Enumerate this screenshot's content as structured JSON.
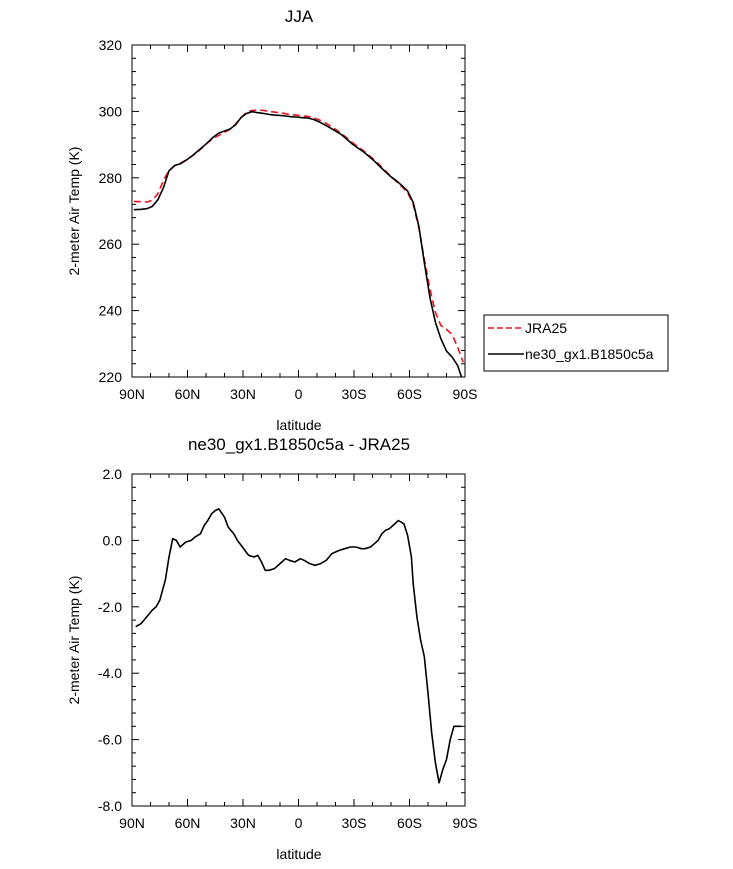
{
  "chart_data": [
    {
      "type": "line",
      "title": "JJA",
      "xlabel": "latitude",
      "ylabel": "2-meter Air Temp (K)",
      "ylim": [
        220,
        320
      ],
      "yticks": [
        220,
        240,
        260,
        280,
        300,
        320
      ],
      "yticklabels": [
        "220",
        "240",
        "260",
        "280",
        "300",
        "320"
      ],
      "xlim": [
        90,
        -90
      ],
      "xticks": [
        90,
        60,
        30,
        0,
        -30,
        -60,
        -90
      ],
      "xticklabels": [
        "90N",
        "60N",
        "30N",
        "0",
        "30S",
        "60S",
        "90S"
      ],
      "legend": "right",
      "series": [
        {
          "name": "JRA25",
          "color": "#e8141c",
          "dash": "dashed",
          "x": [
            89,
            85,
            82,
            79,
            76,
            73,
            70,
            67,
            64,
            61,
            58,
            55,
            52,
            49,
            46,
            43,
            40,
            37,
            34,
            31,
            28,
            25,
            22,
            19,
            16,
            13,
            10,
            7,
            4,
            1,
            -2,
            -5,
            -8,
            -11,
            -14,
            -17,
            -20,
            -23,
            -26,
            -29,
            -32,
            -35,
            -38,
            -41,
            -44,
            -47,
            -50,
            -53,
            -56,
            -59,
            -62,
            -65,
            -68,
            -71,
            -74,
            -77,
            -80,
            -83,
            -86,
            -89
          ],
          "y": [
            272.9,
            272.8,
            272.7,
            273.2,
            275.2,
            279.2,
            282.2,
            283.6,
            284.3,
            285.3,
            286.4,
            287.6,
            289.1,
            290.6,
            291.9,
            292.8,
            293.7,
            294.6,
            296.2,
            298.2,
            299.8,
            300.3,
            300.4,
            300.3,
            300.0,
            299.8,
            299.6,
            299.3,
            299.0,
            298.9,
            298.6,
            298.5,
            298.1,
            297.5,
            296.7,
            295.7,
            294.6,
            293.4,
            292.1,
            290.7,
            289.4,
            288.2,
            286.8,
            285.4,
            283.8,
            282.1,
            280.4,
            278.8,
            277.3,
            275.6,
            272.0,
            265.0,
            255.5,
            246.5,
            239.5,
            235.5,
            234.3,
            232.8,
            229.0,
            224.5
          ]
        },
        {
          "name": "ne30_gx1.B1850c5a",
          "color": "#000000",
          "dash": "solid",
          "x": [
            89,
            85,
            82,
            79,
            76,
            73,
            70,
            67,
            64,
            61,
            58,
            55,
            52,
            49,
            46,
            43,
            40,
            37,
            34,
            31,
            28,
            25,
            22,
            19,
            16,
            13,
            10,
            7,
            4,
            1,
            -2,
            -5,
            -8,
            -11,
            -14,
            -17,
            -20,
            -23,
            -26,
            -29,
            -32,
            -35,
            -38,
            -41,
            -44,
            -47,
            -50,
            -53,
            -56,
            -59,
            -62,
            -65,
            -68,
            -71,
            -74,
            -77,
            -80,
            -83,
            -86,
            -89
          ],
          "y": [
            270.4,
            270.5,
            270.7,
            271.4,
            273.4,
            277.0,
            282.1,
            283.7,
            284.2,
            285.2,
            286.4,
            287.8,
            289.2,
            290.7,
            292.3,
            293.5,
            294.1,
            294.7,
            296.0,
            298.2,
            299.4,
            299.9,
            299.6,
            299.4,
            299.1,
            298.9,
            298.8,
            298.6,
            298.4,
            298.3,
            298.1,
            298.0,
            297.6,
            296.9,
            296.0,
            295.1,
            294.1,
            293.1,
            291.7,
            290.2,
            289.0,
            287.9,
            286.5,
            285.0,
            283.4,
            281.8,
            280.3,
            279.1,
            277.6,
            276.0,
            272.6,
            265.5,
            254.5,
            244.0,
            236.5,
            231.5,
            227.8,
            226.0,
            223.5,
            218.5
          ]
        }
      ]
    },
    {
      "type": "line",
      "title": "ne30_gx1.B1850c5a - JRA25",
      "xlabel": "latitude",
      "ylabel": "2-meter Air Temp (K)",
      "ylim": [
        -8.0,
        2.0
      ],
      "yticks": [
        -8,
        -6,
        -4,
        -2,
        0,
        2
      ],
      "yticklabels": [
        "-8.0",
        "-6.0",
        "-4.0",
        "-2.0",
        "0.0",
        "2.0"
      ],
      "xlim": [
        90,
        -90
      ],
      "xticks": [
        90,
        60,
        30,
        0,
        -30,
        -60,
        -90
      ],
      "xticklabels": [
        "90N",
        "60N",
        "30N",
        "0",
        "30S",
        "60S",
        "90S"
      ],
      "series": [
        {
          "color": "#000000",
          "dash": "solid",
          "x": [
            88,
            85,
            82,
            79,
            77,
            75,
            72,
            70,
            68,
            66,
            64,
            61,
            58,
            56,
            53,
            51,
            49,
            47,
            45,
            43,
            40,
            38,
            35,
            33,
            31,
            29,
            27,
            24,
            22,
            20,
            18,
            16,
            13,
            10,
            7,
            5,
            2,
            -1,
            -3,
            -6,
            -9,
            -12,
            -15,
            -18,
            -20,
            -22,
            -25,
            -28,
            -31,
            -34,
            -36,
            -39,
            -41,
            -43,
            -45,
            -47,
            -49,
            -51,
            -54,
            -57,
            -59,
            -61,
            -62,
            -64,
            -66,
            -68,
            -70,
            -72,
            -74,
            -76,
            -78,
            -80,
            -82,
            -84,
            -86,
            -88
          ],
          "y": [
            -2.6,
            -2.5,
            -2.3,
            -2.1,
            -2.0,
            -1.8,
            -1.2,
            -0.5,
            0.05,
            0.0,
            -0.2,
            -0.05,
            0.0,
            0.1,
            0.2,
            0.45,
            0.6,
            0.8,
            0.9,
            0.95,
            0.7,
            0.4,
            0.2,
            0.0,
            -0.15,
            -0.3,
            -0.45,
            -0.5,
            -0.45,
            -0.65,
            -0.9,
            -0.9,
            -0.85,
            -0.7,
            -0.55,
            -0.6,
            -0.65,
            -0.55,
            -0.6,
            -0.7,
            -0.75,
            -0.7,
            -0.6,
            -0.4,
            -0.35,
            -0.3,
            -0.25,
            -0.2,
            -0.2,
            -0.25,
            -0.25,
            -0.2,
            -0.1,
            0.0,
            0.2,
            0.3,
            0.35,
            0.45,
            0.6,
            0.5,
            0.15,
            -0.5,
            -1.3,
            -2.3,
            -3.0,
            -3.5,
            -4.6,
            -5.8,
            -6.7,
            -7.3,
            -6.9,
            -6.6,
            -6.0,
            -5.6,
            -5.6,
            -5.6
          ]
        }
      ]
    }
  ]
}
